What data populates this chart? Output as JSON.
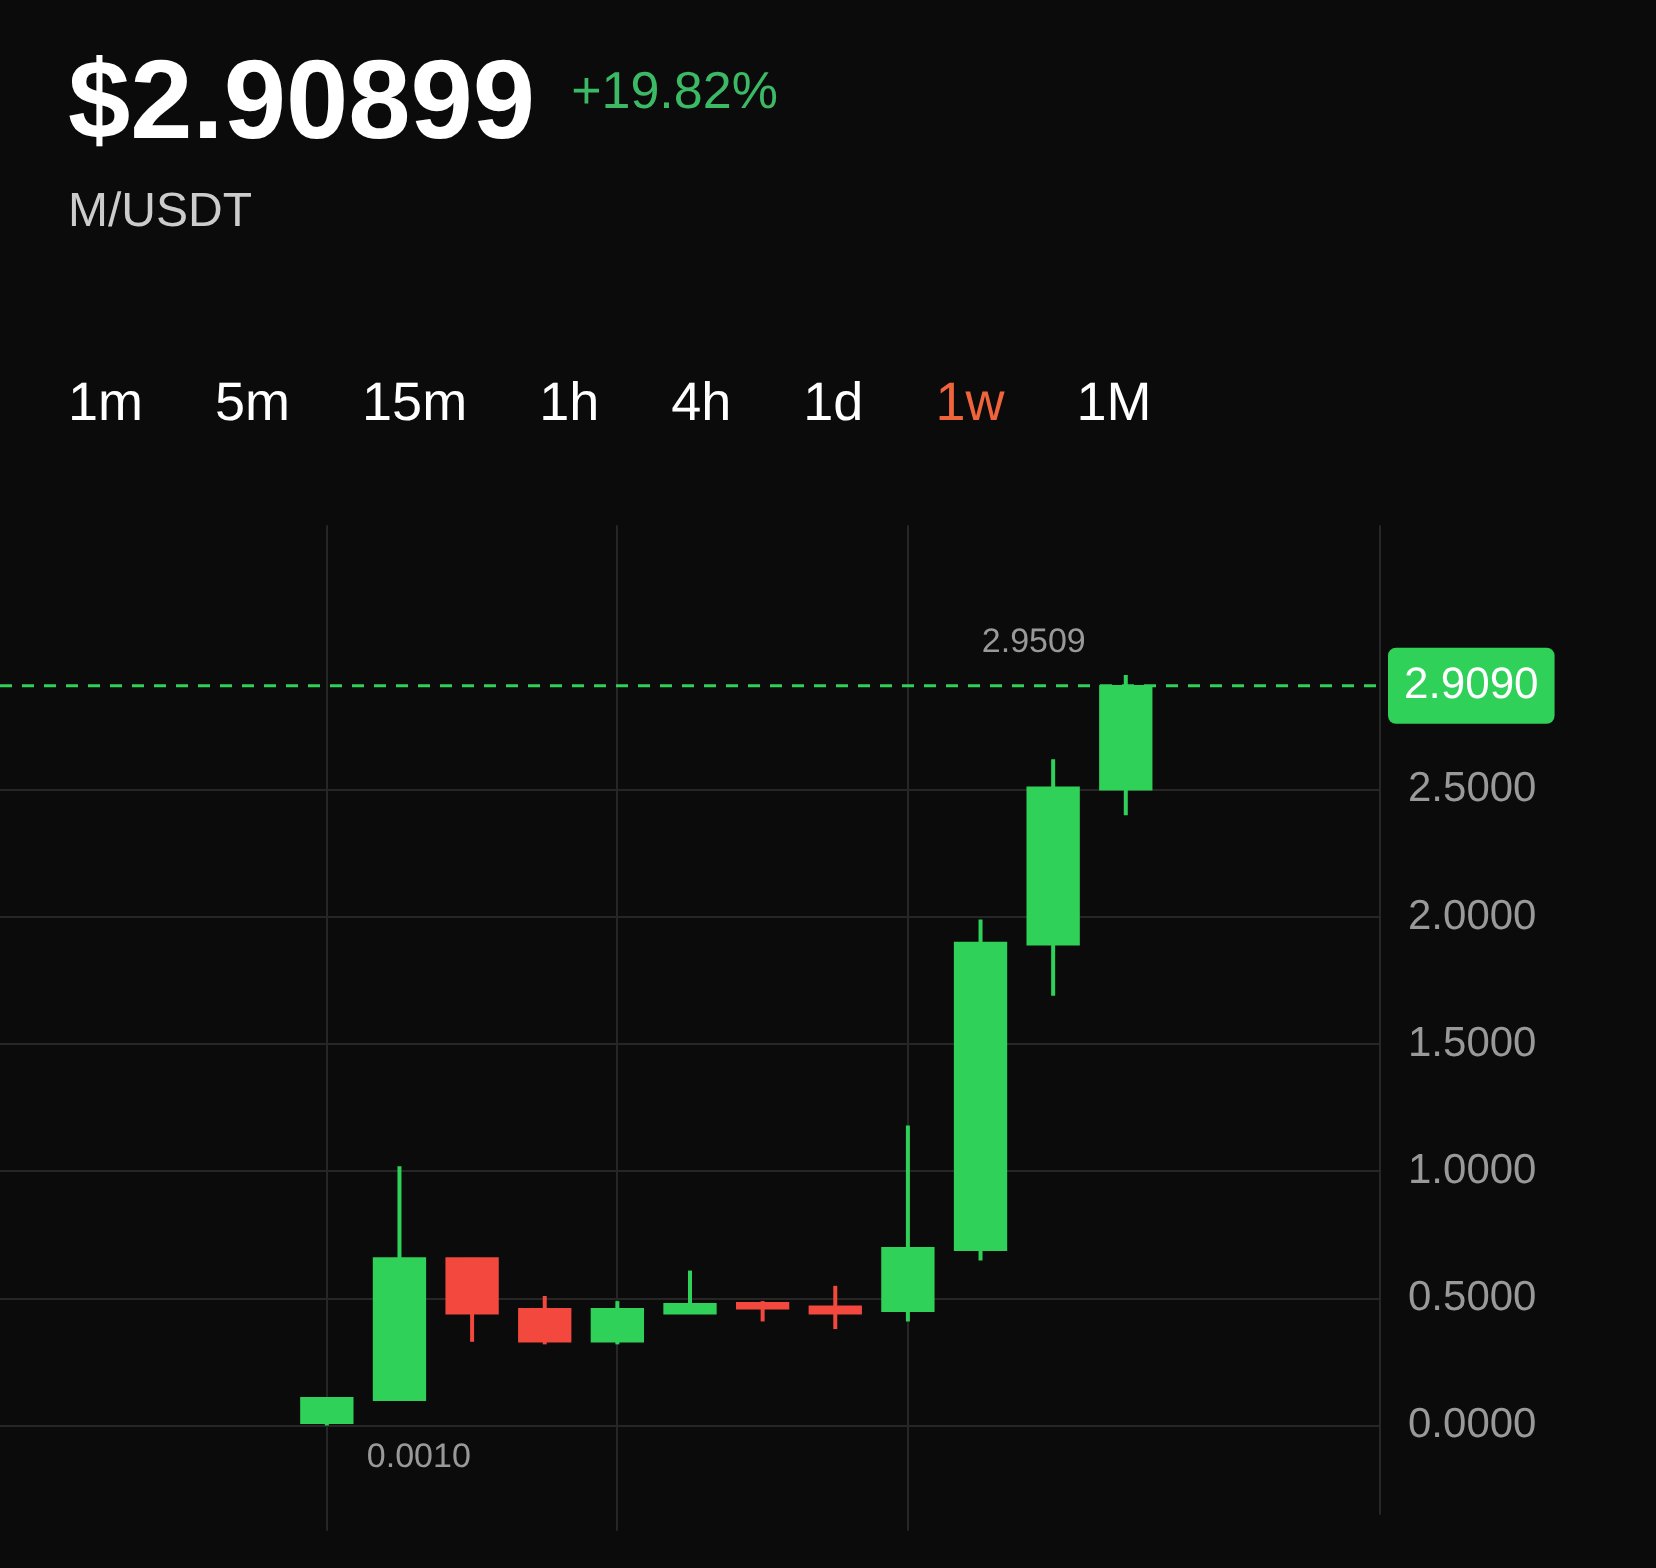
{
  "chart_data": {
    "type": "candlestick",
    "title": "$2.90899",
    "subtitle": "M/USDT",
    "annotations": [
      "+19.82%",
      "1m",
      "5m",
      "15m",
      "1h",
      "4h",
      "1d",
      "1w",
      "1M",
      "2.9509",
      "0.0010"
    ],
    "categories": [
      null,
      null,
      null,
      null,
      null,
      null,
      null,
      null,
      null,
      null,
      null,
      null,
      null,
      null,
      null,
      null,
      null,
      null,
      null
    ],
    "ohlc": [
      null,
      null,
      null,
      null,
      [
        0.01,
        0.11,
        0.001,
        0.11
      ],
      [
        0.1,
        1.02,
        0.1,
        0.66
      ],
      [
        0.66,
        0.66,
        0.33,
        0.44
      ],
      [
        0.46,
        0.51,
        0.32,
        0.33
      ],
      [
        0.33,
        0.49,
        0.32,
        0.46
      ],
      [
        0.44,
        0.61,
        0.44,
        0.48
      ],
      [
        0.48,
        0.49,
        0.41,
        0.46
      ],
      [
        0.47,
        0.55,
        0.38,
        0.44
      ],
      [
        0.45,
        1.18,
        0.41,
        0.7
      ],
      [
        0.69,
        1.99,
        0.65,
        1.9
      ],
      [
        1.89,
        2.62,
        1.69,
        2.51
      ],
      [
        2.5,
        2.9509,
        2.4,
        2.909
      ],
      null,
      null,
      null
    ],
    "colors": [
      null,
      null,
      null,
      null,
      "#30d158",
      "#30d158",
      "#f2483d",
      "#f2483d",
      "#30d158",
      "#30d158",
      "#f2483d",
      "#f2483d",
      "#30d158",
      "#30d158",
      "#30d158",
      "#30d158",
      null,
      null,
      null
    ],
    "ylim": [
      -0.35,
      3.54
    ],
    "yticks": [
      {
        "value": 0,
        "label": "0.0000"
      },
      {
        "value": 0.5,
        "label": "0.5000"
      },
      {
        "value": 1,
        "label": "1.0000"
      },
      {
        "value": 1.5,
        "label": "1.5000"
      },
      {
        "value": 2,
        "label": "2.0000"
      },
      {
        "value": 2.5,
        "label": "2.5000"
      }
    ],
    "ref_lines": [
      {
        "axis": "y",
        "value": 2.909,
        "label": "2.9090",
        "color": "#30d158",
        "line_style": "dashed"
      }
    ],
    "grid": true,
    "legend": false,
    "tick_labels": "y"
  }
}
